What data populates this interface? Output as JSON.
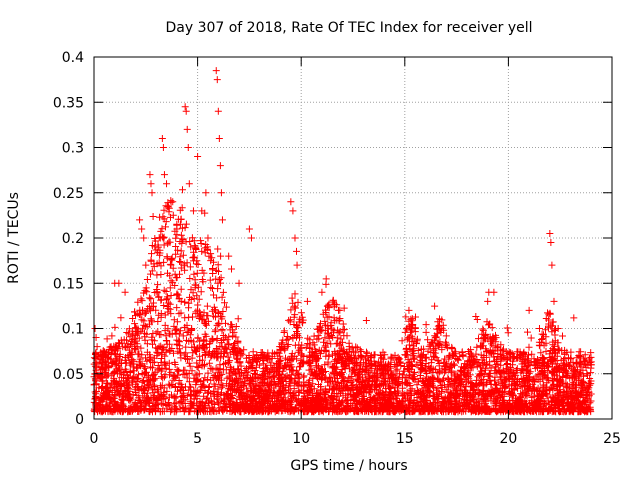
{
  "chart_data": {
    "type": "scatter",
    "title": "Day 307 of 2018, Rate Of TEC Index for receiver yell",
    "xlabel": "GPS time / hours",
    "ylabel": "ROTI / TECUs",
    "xlim": [
      0,
      25
    ],
    "ylim": [
      0,
      0.4
    ],
    "grid": true,
    "marker": "+",
    "color": "#ff0000",
    "x_ticks": [
      0,
      5,
      10,
      15,
      20,
      25
    ],
    "x_tick_labels": [
      "0",
      "5",
      "10",
      "15",
      "20",
      "25"
    ],
    "y_ticks": [
      0,
      0.05,
      0.1,
      0.15,
      0.2,
      0.25,
      0.3,
      0.35,
      0.4
    ],
    "y_tick_labels": [
      "0",
      "0.05",
      "0.1",
      "0.15",
      "0.2",
      "0.25",
      "0.3",
      "0.35",
      "0.4"
    ],
    "data_range": {
      "x_start": 0,
      "x_end": 24
    },
    "series": [
      {
        "name": "ROTI",
        "points_outliers": [
          [
            0.05,
            0.1
          ],
          [
            0.1,
            0.09
          ],
          [
            0.15,
            0.08
          ],
          [
            1.0,
            0.15
          ],
          [
            1.2,
            0.15
          ],
          [
            1.5,
            0.14
          ],
          [
            2.2,
            0.22
          ],
          [
            2.3,
            0.21
          ],
          [
            2.4,
            0.2
          ],
          [
            2.5,
            0.17
          ],
          [
            2.7,
            0.27
          ],
          [
            2.75,
            0.26
          ],
          [
            2.8,
            0.25
          ],
          [
            3.2,
            0.2
          ],
          [
            3.3,
            0.31
          ],
          [
            3.35,
            0.3
          ],
          [
            3.4,
            0.27
          ],
          [
            3.5,
            0.26
          ],
          [
            3.8,
            0.24
          ],
          [
            4.0,
            0.21
          ],
          [
            4.4,
            0.345
          ],
          [
            4.45,
            0.34
          ],
          [
            4.5,
            0.32
          ],
          [
            4.55,
            0.3
          ],
          [
            4.6,
            0.26
          ],
          [
            4.8,
            0.23
          ],
          [
            5.0,
            0.29
          ],
          [
            5.2,
            0.23
          ],
          [
            5.4,
            0.25
          ],
          [
            5.5,
            0.2
          ],
          [
            5.9,
            0.385
          ],
          [
            5.95,
            0.375
          ],
          [
            6.0,
            0.34
          ],
          [
            6.05,
            0.31
          ],
          [
            6.1,
            0.28
          ],
          [
            6.15,
            0.25
          ],
          [
            6.2,
            0.22
          ],
          [
            6.5,
            0.18
          ],
          [
            7.0,
            0.15
          ],
          [
            7.5,
            0.21
          ],
          [
            7.6,
            0.2
          ],
          [
            9.5,
            0.24
          ],
          [
            9.6,
            0.23
          ],
          [
            9.7,
            0.2
          ],
          [
            9.8,
            0.17
          ],
          [
            10.3,
            0.13
          ],
          [
            11.0,
            0.14
          ],
          [
            11.8,
            0.12
          ],
          [
            15.2,
            0.12
          ],
          [
            15.5,
            0.1
          ],
          [
            16.5,
            0.09
          ],
          [
            18.5,
            0.11
          ],
          [
            19.0,
            0.13
          ],
          [
            19.3,
            0.14
          ],
          [
            20.2,
            0.06
          ],
          [
            21.0,
            0.12
          ],
          [
            21.5,
            0.1
          ],
          [
            22.0,
            0.205
          ],
          [
            22.05,
            0.195
          ],
          [
            22.1,
            0.17
          ],
          [
            22.2,
            0.13
          ],
          [
            22.4,
            0.1
          ],
          [
            23.5,
            0.05
          ],
          [
            24.0,
            0.06
          ]
        ]
      }
    ]
  }
}
